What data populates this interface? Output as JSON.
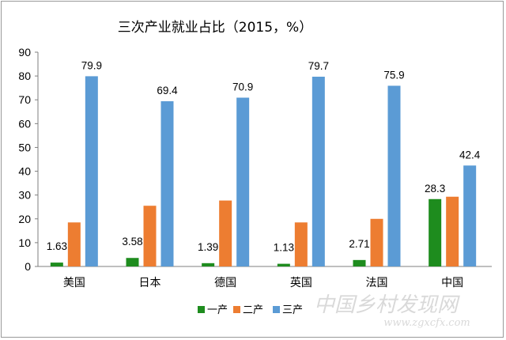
{
  "chart_data": {
    "type": "bar",
    "title": "三次产业就业占比（2015，%）",
    "categories": [
      "美国",
      "日本",
      "德国",
      "英国",
      "法国",
      "中国"
    ],
    "series": [
      {
        "name": "一产",
        "color": "#1e8c1e",
        "values": [
          1.63,
          3.58,
          1.39,
          1.13,
          2.71,
          28.3
        ],
        "labels": [
          "1.63",
          "3.58",
          "1.39",
          "1.13",
          "2.71",
          "28.3"
        ]
      },
      {
        "name": "二产",
        "color": "#ed7d31",
        "values": [
          18.5,
          25.5,
          27.7,
          18.5,
          20,
          29.3
        ],
        "labels": [
          "",
          "",
          "",
          "",
          "",
          ""
        ]
      },
      {
        "name": "三产",
        "color": "#5b9bd5",
        "values": [
          79.9,
          69.4,
          70.9,
          79.7,
          75.9,
          42.4
        ],
        "labels": [
          "79.9",
          "69.4",
          "70.9",
          "79.7",
          "75.9",
          "42.4"
        ]
      }
    ],
    "yticks": [
      "0",
      "10",
      "20",
      "30",
      "40",
      "50",
      "60",
      "70",
      "80",
      "90"
    ],
    "ylim": [
      0,
      90
    ],
    "grid": false,
    "legend_position": "bottom-center"
  },
  "watermark": {
    "cn": "中国乡村发现网",
    "url": "www.zgxcfx.com"
  }
}
